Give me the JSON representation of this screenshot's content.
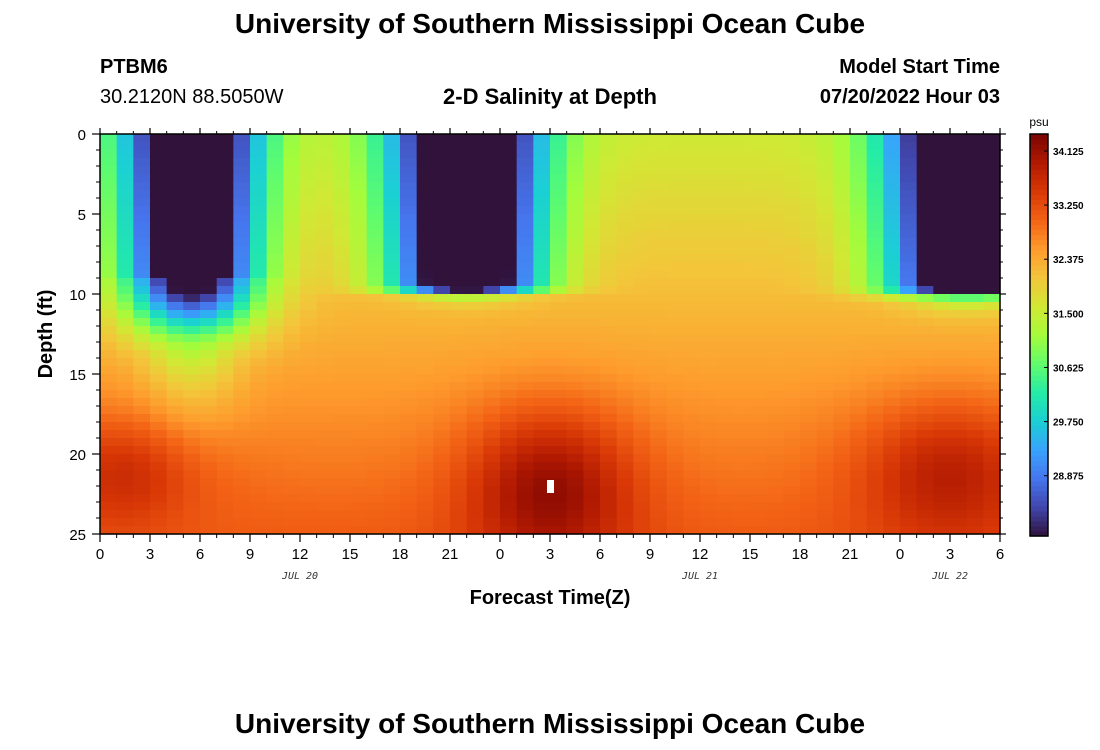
{
  "page": {
    "title_top": "University of Southern Mississippi Ocean Cube",
    "title_bottom": "University of Southern Mississippi Ocean Cube",
    "station": "PTBM6",
    "coords": "30.2120N  88.5050W",
    "plot_title": "2-D Salinity at Depth",
    "model_start_label": "Model Start Time",
    "model_start_value": "07/20/2022 Hour 03"
  },
  "chart_data": {
    "type": "heatmap",
    "title": "2-D Salinity at Depth",
    "xlabel": "Forecast Time(Z)",
    "ylabel": "Depth (ft)",
    "x_range_hours": [
      0,
      54
    ],
    "y_range_ft": [
      0,
      25
    ],
    "x_ticks": [
      {
        "hour": 0,
        "label": "0"
      },
      {
        "hour": 3,
        "label": "3"
      },
      {
        "hour": 6,
        "label": "6"
      },
      {
        "hour": 9,
        "label": "9"
      },
      {
        "hour": 12,
        "label": "12"
      },
      {
        "hour": 15,
        "label": "15"
      },
      {
        "hour": 18,
        "label": "18"
      },
      {
        "hour": 21,
        "label": "21"
      },
      {
        "hour": 24,
        "label": "0"
      },
      {
        "hour": 27,
        "label": "3"
      },
      {
        "hour": 30,
        "label": "6"
      },
      {
        "hour": 33,
        "label": "9"
      },
      {
        "hour": 36,
        "label": "12"
      },
      {
        "hour": 39,
        "label": "15"
      },
      {
        "hour": 42,
        "label": "18"
      },
      {
        "hour": 45,
        "label": "21"
      },
      {
        "hour": 48,
        "label": "0"
      },
      {
        "hour": 51,
        "label": "3"
      },
      {
        "hour": 54,
        "label": "6"
      }
    ],
    "date_labels": [
      {
        "hour": 12,
        "label": "JUL 20"
      },
      {
        "hour": 36,
        "label": "JUL 21"
      },
      {
        "hour": 51,
        "label": "JUL 22"
      }
    ],
    "y_ticks": [
      0,
      5,
      10,
      15,
      20,
      25
    ],
    "colorbar": {
      "unit": "psu",
      "min": 27.9,
      "max": 34.4,
      "ticks": [
        34.125,
        33.25,
        32.375,
        31.5,
        30.625,
        29.75,
        28.875
      ],
      "tick_labels": [
        "34.125",
        "33.250",
        "32.375",
        "31.500",
        "30.625",
        "29.750",
        "28.875"
      ]
    },
    "colormap": [
      "#30123b",
      "#4145ab",
      "#4675ed",
      "#39a2fc",
      "#1bcfd4",
      "#24eca6",
      "#61fc6c",
      "#a4fc3b",
      "#d1e834",
      "#f3c63a",
      "#fe9b2d",
      "#f36315",
      "#d93806",
      "#b11901",
      "#7a0403"
    ],
    "grid": {
      "x_step_hours": 1,
      "y_step_ft": 0.5,
      "low_salinity_cells": [
        {
          "hour": 5.5,
          "depth": 4.5,
          "x_spread": 3.0,
          "y_spread": 3.8,
          "amplitude": 5.6,
          "upper_depth": 8.5,
          "lower_depth": 17.0,
          "tilt": 0.22,
          "value_weight": 1.0
        },
        {
          "hour": 22.0,
          "depth": 3.0,
          "x_spread": 3.4,
          "y_spread": 4.2,
          "amplitude": 5.8,
          "upper_depth": 9.5,
          "lower_depth": 10.5
        },
        {
          "hour": 52.0,
          "depth": 4.0,
          "x_spread": 3.6,
          "y_spread": 4.4,
          "amplitude": 5.8,
          "upper_depth": 9.5,
          "lower_depth": 11.0
        }
      ],
      "high_salinity_cells": [
        {
          "hour": 27.0,
          "depth": 22.0,
          "x_spread": 5.0,
          "y_spread": 5.0,
          "amplitude": 1.3
        },
        {
          "hour": 1.5,
          "depth": 21.0,
          "x_spread": 5.0,
          "y_spread": 3.5,
          "amplitude": 0.8
        },
        {
          "hour": 51.0,
          "depth": 21.0,
          "x_spread": 5.5,
          "y_spread": 4.5,
          "amplitude": 1.0
        }
      ],
      "background_value": 32.3,
      "marker": {
        "hour": 27,
        "depth": 22
      }
    }
  }
}
